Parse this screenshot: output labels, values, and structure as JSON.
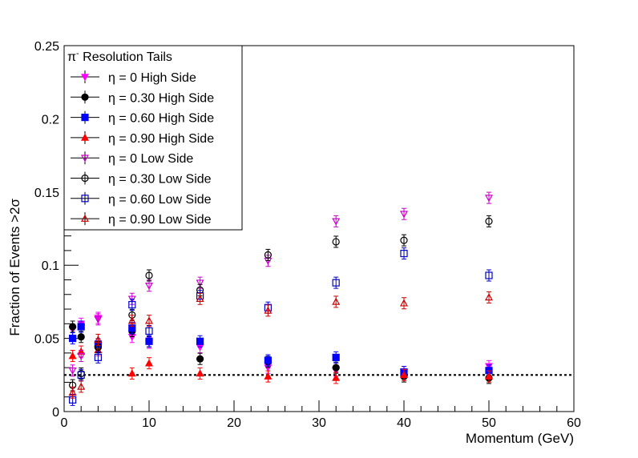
{
  "chart_data": {
    "type": "scatter",
    "title": "",
    "xlabel": "Momentum (GeV)",
    "ylabel": "Fraction of Events >2σ",
    "xlim": [
      0,
      60
    ],
    "ylim": [
      0,
      0.25
    ],
    "x_ticks": [
      "0",
      "10",
      "20",
      "30",
      "40",
      "50",
      "60"
    ],
    "y_ticks": [
      "0",
      "0.05",
      "0.1",
      "0.15",
      "0.2",
      "0.25"
    ],
    "reference_line": {
      "y": 0.025,
      "style": "dotted",
      "color": "#000000"
    },
    "legend": {
      "title_particle": "π",
      "title_charge": "-",
      "title_text": " Resolution Tails",
      "placement": "top-left"
    },
    "series": [
      {
        "name": "η = 0 High Side",
        "marker": "triangle-down-filled",
        "color": "#ff00ff",
        "x": [
          1,
          2,
          4,
          8,
          10,
          16,
          24,
          32,
          40,
          50
        ],
        "y": [
          0.056,
          0.06,
          0.064,
          0.051,
          0.047,
          0.044,
          0.03,
          0.028,
          0.027,
          0.031
        ]
      },
      {
        "name": "η = 0.30 High Side",
        "marker": "circle-filled",
        "color": "#000000",
        "x": [
          1,
          2,
          4,
          8,
          10,
          16,
          24,
          32,
          40,
          50
        ],
        "y": [
          0.058,
          0.051,
          0.044,
          0.055,
          0.048,
          0.036,
          0.034,
          0.03,
          0.024,
          0.023
        ]
      },
      {
        "name": "η = 0.60 High Side",
        "marker": "square-filled",
        "color": "#0000ff",
        "x": [
          1,
          2,
          4,
          8,
          10,
          16,
          24,
          32,
          40,
          50
        ],
        "y": [
          0.05,
          0.058,
          0.046,
          0.057,
          0.048,
          0.048,
          0.035,
          0.037,
          0.027,
          0.028
        ]
      },
      {
        "name": "η = 0.90 High Side",
        "marker": "triangle-up-filled",
        "color": "#ff0000",
        "x": [
          1,
          2,
          4,
          8,
          10,
          16,
          24,
          32,
          40,
          50
        ],
        "y": [
          0.038,
          0.041,
          0.042,
          0.026,
          0.033,
          0.026,
          0.024,
          0.023,
          0.025,
          0.024
        ]
      },
      {
        "name": "η = 0 Low Side",
        "marker": "triangle-down-open",
        "color": "#cc00cc",
        "x": [
          1,
          2,
          4,
          8,
          10,
          16,
          24,
          32,
          40,
          50
        ],
        "y": [
          0.028,
          0.038,
          0.063,
          0.077,
          0.086,
          0.088,
          0.103,
          0.13,
          0.135,
          0.146
        ]
      },
      {
        "name": "η = 0.30 Low Side",
        "marker": "circle-open",
        "color": "#000000",
        "x": [
          1,
          2,
          4,
          8,
          10,
          16,
          24,
          32,
          40,
          50
        ],
        "y": [
          0.018,
          0.026,
          0.044,
          0.066,
          0.093,
          0.083,
          0.107,
          0.116,
          0.117,
          0.13
        ]
      },
      {
        "name": "η = 0.60 Low Side",
        "marker": "square-open",
        "color": "#0000cc",
        "x": [
          1,
          2,
          4,
          8,
          10,
          16,
          24,
          32,
          40,
          50
        ],
        "y": [
          0.008,
          0.025,
          0.037,
          0.073,
          0.055,
          0.079,
          0.071,
          0.088,
          0.108,
          0.093
        ]
      },
      {
        "name": "η = 0.90 Low Side",
        "marker": "triangle-up-open",
        "color": "#cc0000",
        "x": [
          1,
          2,
          4,
          8,
          10,
          16,
          24,
          32,
          40,
          50
        ],
        "y": [
          0.013,
          0.017,
          0.049,
          0.062,
          0.062,
          0.077,
          0.069,
          0.075,
          0.074,
          0.078
        ]
      }
    ]
  }
}
